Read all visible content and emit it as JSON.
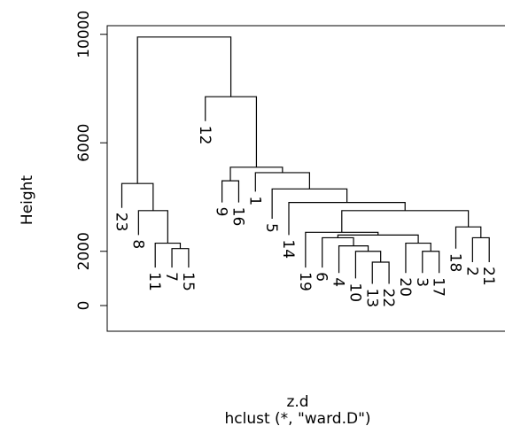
{
  "chart_data": {
    "type": "dendrogram",
    "ylabel": "Height",
    "xlabel": "z.d",
    "subtitle": "hclust (*, \"ward.D\")",
    "yticks": [
      0,
      2000,
      6000,
      10000
    ],
    "ylim": [
      0,
      10000
    ],
    "leaf_order": [
      "23",
      "8",
      "11",
      "7",
      "15",
      "12",
      "9",
      "16",
      "1",
      "5",
      "14",
      "19",
      "6",
      "4",
      "10",
      "13",
      "22",
      "20",
      "3",
      "17",
      "18",
      "2",
      "21"
    ],
    "merges": [
      {
        "id": "A",
        "children": [
          "7",
          "15"
        ],
        "height": 2100
      },
      {
        "id": "B",
        "children": [
          "11",
          "A"
        ],
        "height": 2300
      },
      {
        "id": "C",
        "children": [
          "8",
          "B"
        ],
        "height": 3500
      },
      {
        "id": "D",
        "children": [
          "23",
          "C"
        ],
        "height": 4500
      },
      {
        "id": "E",
        "children": [
          "9",
          "16"
        ],
        "height": 4600
      },
      {
        "id": "F",
        "children": [
          "13",
          "22"
        ],
        "height": 1600
      },
      {
        "id": "G",
        "children": [
          "10",
          "F"
        ],
        "height": 2000
      },
      {
        "id": "H",
        "children": [
          "4",
          "G"
        ],
        "height": 2200
      },
      {
        "id": "I",
        "children": [
          "6",
          "H"
        ],
        "height": 2500
      },
      {
        "id": "J",
        "children": [
          "3",
          "17"
        ],
        "height": 2000
      },
      {
        "id": "K",
        "children": [
          "20",
          "J"
        ],
        "height": 2300
      },
      {
        "id": "L",
        "children": [
          "I",
          "K"
        ],
        "height": 2600
      },
      {
        "id": "M",
        "children": [
          "19",
          "L"
        ],
        "height": 2700
      },
      {
        "id": "N",
        "children": [
          "2",
          "21"
        ],
        "height": 2500
      },
      {
        "id": "O",
        "children": [
          "18",
          "N"
        ],
        "height": 2900
      },
      {
        "id": "P",
        "children": [
          "M",
          "O"
        ],
        "height": 3500
      },
      {
        "id": "Q",
        "children": [
          "14",
          "P"
        ],
        "height": 3800
      },
      {
        "id": "R",
        "children": [
          "5",
          "Q"
        ],
        "height": 4300
      },
      {
        "id": "S",
        "children": [
          "1",
          "R"
        ],
        "height": 4900
      },
      {
        "id": "T",
        "children": [
          "E",
          "S"
        ],
        "height": 5100
      },
      {
        "id": "U",
        "children": [
          "12",
          "T"
        ],
        "height": 7700
      },
      {
        "id": "V",
        "children": [
          "D",
          "U"
        ],
        "height": 9900
      }
    ],
    "leaf_heights": {
      "23": 3600,
      "8": 2600,
      "11": 1400,
      "7": 1400,
      "15": 1400,
      "12": 6800,
      "9": 3800,
      "16": 3800,
      "1": 4200,
      "5": 3200,
      "14": 2600,
      "19": 1400,
      "6": 1400,
      "4": 1200,
      "10": 1000,
      "13": 800,
      "22": 800,
      "20": 1200,
      "3": 1200,
      "17": 1200,
      "18": 2100,
      "2": 1600,
      "21": 1600
    }
  }
}
